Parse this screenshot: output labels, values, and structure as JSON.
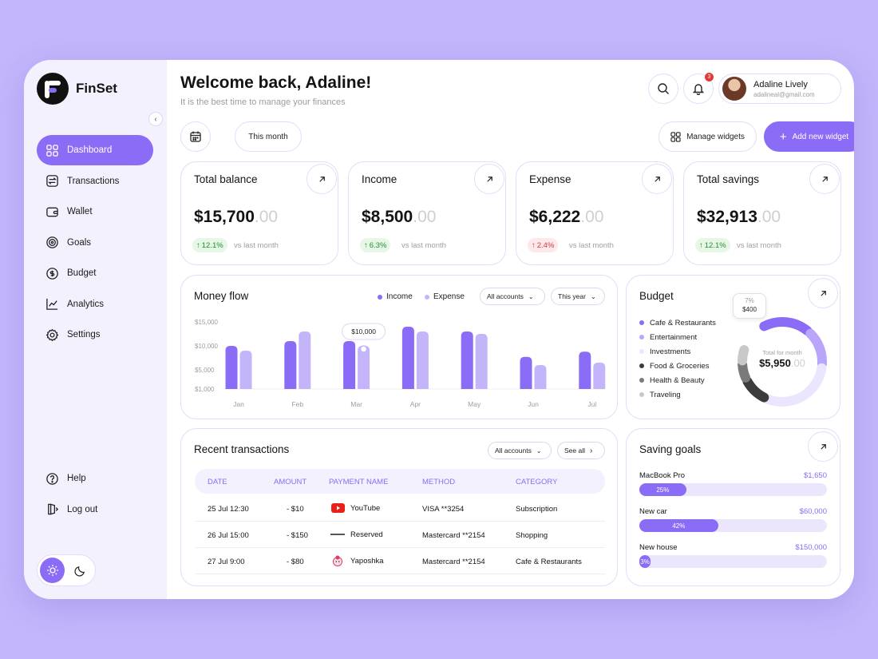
{
  "app": {
    "name": "FinSet"
  },
  "sidebar": {
    "items": [
      {
        "label": "Dashboard",
        "icon": "grid-icon",
        "active": true
      },
      {
        "label": "Transactions",
        "icon": "transactions-icon"
      },
      {
        "label": "Wallet",
        "icon": "wallet-icon"
      },
      {
        "label": "Goals",
        "icon": "target-icon"
      },
      {
        "label": "Budget",
        "icon": "budget-icon"
      },
      {
        "label": "Analytics",
        "icon": "chart-icon"
      },
      {
        "label": "Settings",
        "icon": "gear-icon"
      }
    ],
    "bottom": [
      {
        "label": "Help",
        "icon": "help-icon"
      },
      {
        "label": "Log out",
        "icon": "logout-icon"
      }
    ],
    "theme": "light"
  },
  "header": {
    "title": "Welcome back, Adaline!",
    "subtitle": "It is the best time to manage your finances",
    "notifications": "3",
    "user_name": "Adaline Lively",
    "user_email": "adalineal@gmail.com"
  },
  "toolbar": {
    "period": "This month",
    "manage_widgets": "Manage widgets",
    "add_widget": "Add new widget"
  },
  "stats": [
    {
      "title": "Total balance",
      "value": "$15,700",
      "cents": ".00",
      "change": "12.1%",
      "direction": "up",
      "vs": "vs last month"
    },
    {
      "title": "Income",
      "value": "$8,500",
      "cents": ".00",
      "change": "6.3%",
      "direction": "up",
      "vs": "vs last month"
    },
    {
      "title": "Expense",
      "value": "$6,222",
      "cents": ".00",
      "change": "2.4%",
      "direction": "down",
      "vs": "vs last month"
    },
    {
      "title": "Total savings",
      "value": "$32,913",
      "cents": ".00",
      "change": "12.1%",
      "direction": "up",
      "vs": "vs last month"
    }
  ],
  "money_flow": {
    "title": "Money flow",
    "legend_income": "Income",
    "legend_expense": "Expense",
    "accounts": "All accounts",
    "period": "This year",
    "tooltip": "$10,000"
  },
  "chart_data": {
    "type": "bar",
    "categories": [
      "Jan",
      "Feb",
      "Mar",
      "Apr",
      "May",
      "Jun",
      "Jul"
    ],
    "yticks": [
      "$15,000",
      "$10,000",
      "$5,000",
      "$1,000"
    ],
    "ylim": [
      1000,
      15000
    ],
    "series": [
      {
        "name": "Income",
        "color": "#8a6cf6",
        "values": [
          10000,
          11000,
          11000,
          14000,
          13000,
          7700,
          8800
        ]
      },
      {
        "name": "Expense",
        "color": "#c4b5fb",
        "values": [
          9000,
          13000,
          10000,
          13000,
          12500,
          6000,
          6500
        ]
      }
    ]
  },
  "budget": {
    "title": "Budget",
    "categories": [
      {
        "label": "Cafe & Restaurants",
        "color": "#8a6cf6",
        "value": 0.2
      },
      {
        "label": "Entertainment",
        "color": "#b9a6fa",
        "value": 0.15
      },
      {
        "label": "Investments",
        "color": "#ebe5fd",
        "value": 0.3
      },
      {
        "label": "Food & Groceries",
        "color": "#3c3c3c",
        "value": 0.11
      },
      {
        "label": "Health & Beauty",
        "color": "#7a7a7a",
        "value": 0.07
      },
      {
        "label": "Traveling",
        "color": "#c8c8c8",
        "value": 0.06
      }
    ],
    "total_label": "Total for month",
    "total": "$5,950",
    "total_cents": ".00",
    "tooltip_pct": "7%",
    "tooltip_value": "$400"
  },
  "transactions": {
    "title": "Recent transactions",
    "accounts": "All accounts",
    "see_all": "See all",
    "headers": [
      "DATE",
      "AMOUNT",
      "PAYMENT NAME",
      "METHOD",
      "CATEGORY"
    ],
    "rows": [
      {
        "date": "25 Jul 12:30",
        "amount": "- $10",
        "name": "YouTube",
        "logo": "youtube-logo",
        "method": "VISA **3254",
        "category": "Subscription"
      },
      {
        "date": "26 Jul 15:00",
        "amount": "- $150",
        "name": "Reserved",
        "logo": "reserved-logo",
        "method": "Mastercard **2154",
        "category": "Shopping"
      },
      {
        "date": "27 Jul 9:00",
        "amount": "- $80",
        "name": "Yaposhka",
        "logo": "yaposhka-logo",
        "method": "Mastercard **2154",
        "category": "Cafe & Restaurants"
      }
    ]
  },
  "saving_goals": {
    "title": "Saving goals",
    "goals": [
      {
        "name": "MacBook Pro",
        "amount": "$1,650",
        "percent": 25,
        "label": "25%"
      },
      {
        "name": "New car",
        "amount": "$60,000",
        "percent": 42,
        "label": "42%"
      },
      {
        "name": "New house",
        "amount": "$150,000",
        "percent": 3,
        "label": "3%"
      }
    ]
  }
}
